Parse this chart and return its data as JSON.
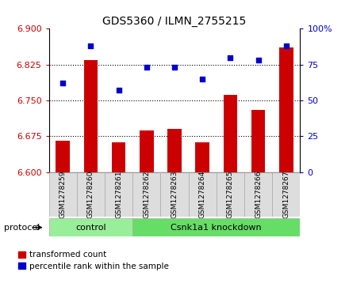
{
  "title": "GDS5360 / ILMN_2755215",
  "samples": [
    "GSM1278259",
    "GSM1278260",
    "GSM1278261",
    "GSM1278262",
    "GSM1278263",
    "GSM1278264",
    "GSM1278265",
    "GSM1278266",
    "GSM1278267"
  ],
  "bar_values": [
    6.665,
    6.835,
    6.662,
    6.688,
    6.69,
    6.663,
    6.762,
    6.73,
    6.86
  ],
  "dot_values": [
    62,
    88,
    57,
    73,
    73,
    65,
    80,
    78,
    88
  ],
  "ylim_left": [
    6.6,
    6.9
  ],
  "ylim_right": [
    0,
    100
  ],
  "yticks_left": [
    6.6,
    6.675,
    6.75,
    6.825,
    6.9
  ],
  "yticks_right": [
    0,
    25,
    50,
    75,
    100
  ],
  "bar_color": "#CC0000",
  "dot_color": "#0000CC",
  "protocol_groups": [
    {
      "label": "control",
      "n_samples": 3,
      "color": "#99EE99"
    },
    {
      "label": "Csnk1a1 knockdown",
      "n_samples": 6,
      "color": "#66DD66"
    }
  ],
  "protocol_label": "protocol",
  "legend_bar_label": "transformed count",
  "legend_dot_label": "percentile rank within the sample",
  "bg_color": "#FFFFFF",
  "tick_label_color_left": "#CC0000",
  "tick_label_color_right": "#0000CC",
  "baseline": 6.6,
  "sample_box_color": "#DDDDDD",
  "sample_box_edge_color": "#AAAAAA",
  "title_fontsize": 10,
  "bar_width": 0.5,
  "dot_size": 18,
  "grid_linestyle": "dotted",
  "grid_linewidth": 0.8
}
